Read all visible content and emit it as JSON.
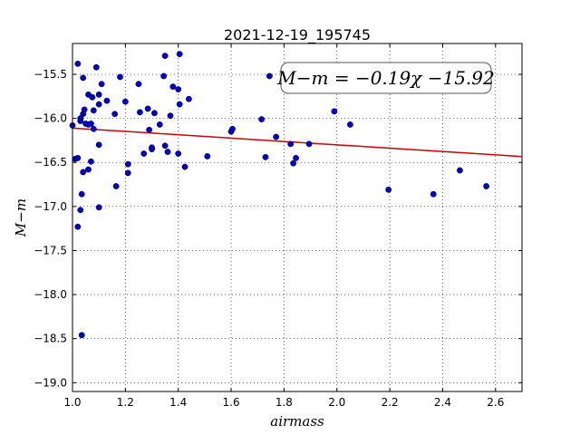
{
  "chart_data": {
    "type": "scatter",
    "title": "2021-12-19_195745",
    "xlabel": "airmass",
    "ylabel": "M−m",
    "xlim": [
      1.0,
      2.7
    ],
    "ylim": [
      -19.1,
      -15.15
    ],
    "x_ticks": [
      "1.0",
      "1.2",
      "1.4",
      "1.6",
      "1.8",
      "2.0",
      "2.2",
      "2.4",
      "2.6"
    ],
    "y_ticks": [
      "−15.5",
      "−16.0",
      "−16.5",
      "−17.0",
      "−17.5",
      "−18.0",
      "−18.5",
      "−19.0"
    ],
    "grid": true,
    "annotation": "M−m = −0.19χ −15.92",
    "fit": {
      "slope": -0.19,
      "intercept": -15.92,
      "color": "#cc0000"
    },
    "point_color": "#0000cc",
    "points": [
      [
        1.0,
        -16.08
      ],
      [
        1.01,
        -16.46
      ],
      [
        1.02,
        -15.38
      ],
      [
        1.02,
        -16.45
      ],
      [
        1.02,
        -17.23
      ],
      [
        1.03,
        -16.0
      ],
      [
        1.03,
        -16.03
      ],
      [
        1.03,
        -17.04
      ],
      [
        1.035,
        -16.86
      ],
      [
        1.035,
        -18.46
      ],
      [
        1.04,
        -15.54
      ],
      [
        1.04,
        -15.95
      ],
      [
        1.04,
        -16.61
      ],
      [
        1.045,
        -15.9
      ],
      [
        1.05,
        -16.06
      ],
      [
        1.06,
        -16.07
      ],
      [
        1.06,
        -15.73
      ],
      [
        1.06,
        -16.58
      ],
      [
        1.07,
        -16.06
      ],
      [
        1.07,
        -16.49
      ],
      [
        1.075,
        -15.76
      ],
      [
        1.08,
        -16.12
      ],
      [
        1.08,
        -15.91
      ],
      [
        1.09,
        -15.42
      ],
      [
        1.1,
        -15.73
      ],
      [
        1.1,
        -15.84
      ],
      [
        1.1,
        -17.01
      ],
      [
        1.1,
        -16.3
      ],
      [
        1.11,
        -15.61
      ],
      [
        1.13,
        -15.8
      ],
      [
        1.16,
        -15.95
      ],
      [
        1.165,
        -16.77
      ],
      [
        1.18,
        -15.53
      ],
      [
        1.2,
        -15.81
      ],
      [
        1.21,
        -16.52
      ],
      [
        1.21,
        -16.62
      ],
      [
        1.25,
        -15.61
      ],
      [
        1.255,
        -15.93
      ],
      [
        1.27,
        -16.4
      ],
      [
        1.285,
        -15.89
      ],
      [
        1.29,
        -16.13
      ],
      [
        1.3,
        -16.35
      ],
      [
        1.3,
        -16.33
      ],
      [
        1.31,
        -15.94
      ],
      [
        1.33,
        -16.07
      ],
      [
        1.345,
        -15.52
      ],
      [
        1.35,
        -16.31
      ],
      [
        1.35,
        -15.29
      ],
      [
        1.36,
        -16.38
      ],
      [
        1.37,
        -15.97
      ],
      [
        1.38,
        -15.64
      ],
      [
        1.4,
        -16.4
      ],
      [
        1.4,
        -15.67
      ],
      [
        1.405,
        -15.84
      ],
      [
        1.405,
        -15.27
      ],
      [
        1.425,
        -16.55
      ],
      [
        1.44,
        -15.78
      ],
      [
        1.51,
        -16.43
      ],
      [
        1.6,
        -16.15
      ],
      [
        1.605,
        -16.12
      ],
      [
        1.715,
        -16.01
      ],
      [
        1.73,
        -16.44
      ],
      [
        1.745,
        -15.52
      ],
      [
        1.77,
        -16.21
      ],
      [
        1.825,
        -16.29
      ],
      [
        1.835,
        -16.51
      ],
      [
        1.845,
        -16.45
      ],
      [
        1.895,
        -16.29
      ],
      [
        1.99,
        -15.92
      ],
      [
        2.05,
        -16.07
      ],
      [
        2.195,
        -16.81
      ],
      [
        2.365,
        -16.86
      ],
      [
        2.465,
        -16.59
      ],
      [
        2.565,
        -16.77
      ]
    ]
  }
}
